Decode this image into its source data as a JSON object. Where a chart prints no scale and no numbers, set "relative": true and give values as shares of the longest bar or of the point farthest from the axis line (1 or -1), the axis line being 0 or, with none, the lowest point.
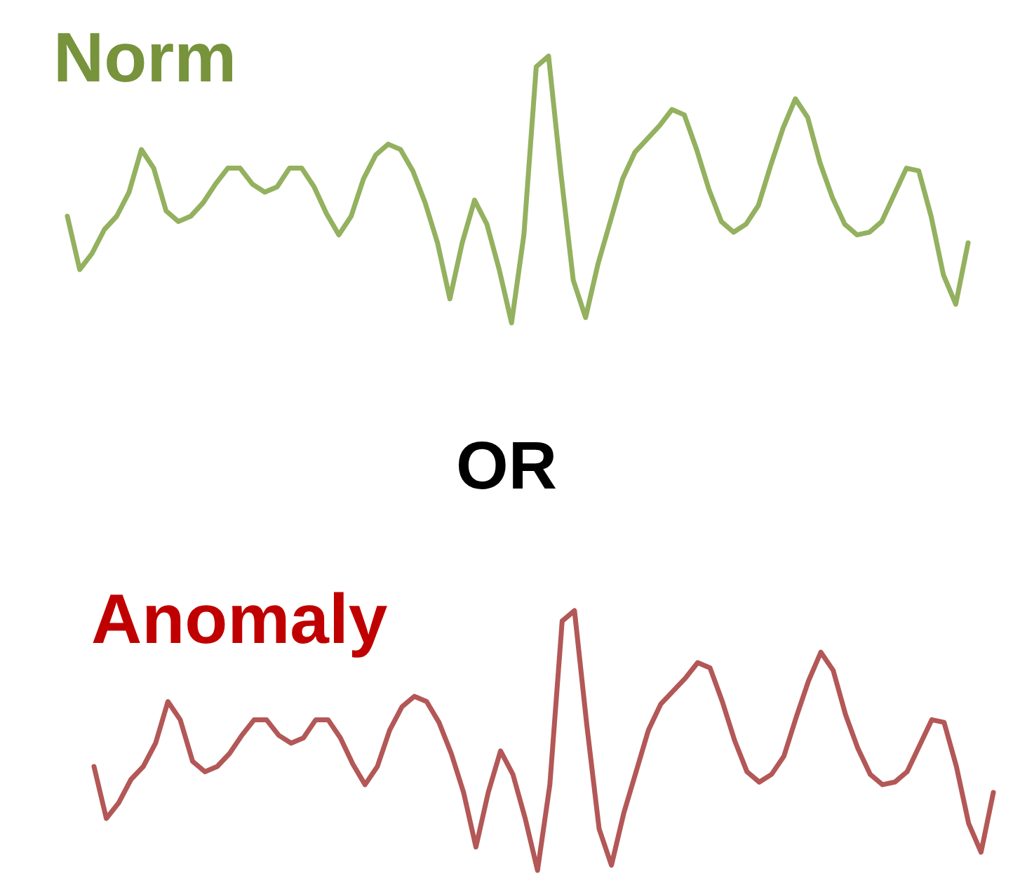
{
  "chart_data": [
    {
      "type": "line",
      "title": "Norm",
      "relative": true,
      "annotations": [
        "OR"
      ],
      "categories": [
        null,
        null,
        null,
        null,
        null,
        null,
        null,
        null,
        null,
        null,
        null,
        null,
        null,
        null,
        null,
        null,
        null,
        null,
        null,
        null,
        null,
        null,
        null,
        null,
        null,
        null,
        null,
        null,
        null,
        null,
        null,
        null,
        null,
        null,
        null,
        null,
        null,
        null,
        null,
        null,
        null,
        null,
        null,
        null,
        null,
        null,
        null,
        null,
        null,
        null,
        null,
        null,
        null,
        null,
        null,
        null,
        null,
        null,
        null,
        null,
        null,
        null,
        null,
        null,
        null,
        null,
        null,
        null,
        null,
        null,
        null,
        null,
        null,
        null
      ],
      "series": [
        {
          "color": "#93b15e",
          "values": [
            0.4,
            0.2,
            0.26,
            0.35,
            0.4,
            0.49,
            0.65,
            0.58,
            0.42,
            0.38,
            0.4,
            0.45,
            0.52,
            0.58,
            0.58,
            0.52,
            0.49,
            0.51,
            0.58,
            0.58,
            0.51,
            0.41,
            0.33,
            0.4,
            0.54,
            0.63,
            0.67,
            0.65,
            0.57,
            0.45,
            0.3,
            0.09,
            0.3,
            0.46,
            0.37,
            0.2,
            0.0,
            0.33,
            0.96,
            1.0,
            0.56,
            0.16,
            0.02,
            0.22,
            0.38,
            0.54,
            0.64,
            0.69,
            0.74,
            0.8,
            0.78,
            0.65,
            0.5,
            0.38,
            0.34,
            0.37,
            0.44,
            0.59,
            0.73,
            0.84,
            0.77,
            0.6,
            0.47,
            0.37,
            0.33,
            0.34,
            0.38,
            0.48,
            0.58,
            0.57,
            0.4,
            0.18,
            0.07,
            0.3
          ]
        }
      ]
    },
    {
      "type": "line",
      "title": "Anomaly",
      "relative": true,
      "categories": [
        null,
        null,
        null,
        null,
        null,
        null,
        null,
        null,
        null,
        null,
        null,
        null,
        null,
        null,
        null,
        null,
        null,
        null,
        null,
        null,
        null,
        null,
        null,
        null,
        null,
        null,
        null,
        null,
        null,
        null,
        null,
        null,
        null,
        null,
        null,
        null,
        null,
        null,
        null,
        null,
        null,
        null,
        null,
        null,
        null,
        null,
        null,
        null,
        null,
        null,
        null,
        null,
        null,
        null,
        null,
        null,
        null,
        null,
        null,
        null,
        null,
        null,
        null,
        null,
        null,
        null,
        null,
        null,
        null,
        null,
        null,
        null,
        null,
        null
      ],
      "series": [
        {
          "color": "#b35757",
          "values": [
            0.4,
            0.2,
            0.26,
            0.35,
            0.4,
            0.49,
            0.65,
            0.58,
            0.42,
            0.38,
            0.4,
            0.45,
            0.52,
            0.58,
            0.58,
            0.52,
            0.49,
            0.51,
            0.58,
            0.58,
            0.51,
            0.41,
            0.33,
            0.4,
            0.54,
            0.63,
            0.67,
            0.65,
            0.57,
            0.45,
            0.3,
            0.09,
            0.3,
            0.46,
            0.37,
            0.2,
            0.0,
            0.33,
            0.96,
            1.0,
            0.56,
            0.16,
            0.02,
            0.22,
            0.38,
            0.54,
            0.64,
            0.69,
            0.74,
            0.8,
            0.78,
            0.65,
            0.5,
            0.38,
            0.34,
            0.37,
            0.44,
            0.59,
            0.73,
            0.84,
            0.77,
            0.6,
            0.47,
            0.37,
            0.33,
            0.34,
            0.38,
            0.48,
            0.58,
            0.57,
            0.4,
            0.18,
            0.07,
            0.3
          ]
        }
      ]
    }
  ]
}
